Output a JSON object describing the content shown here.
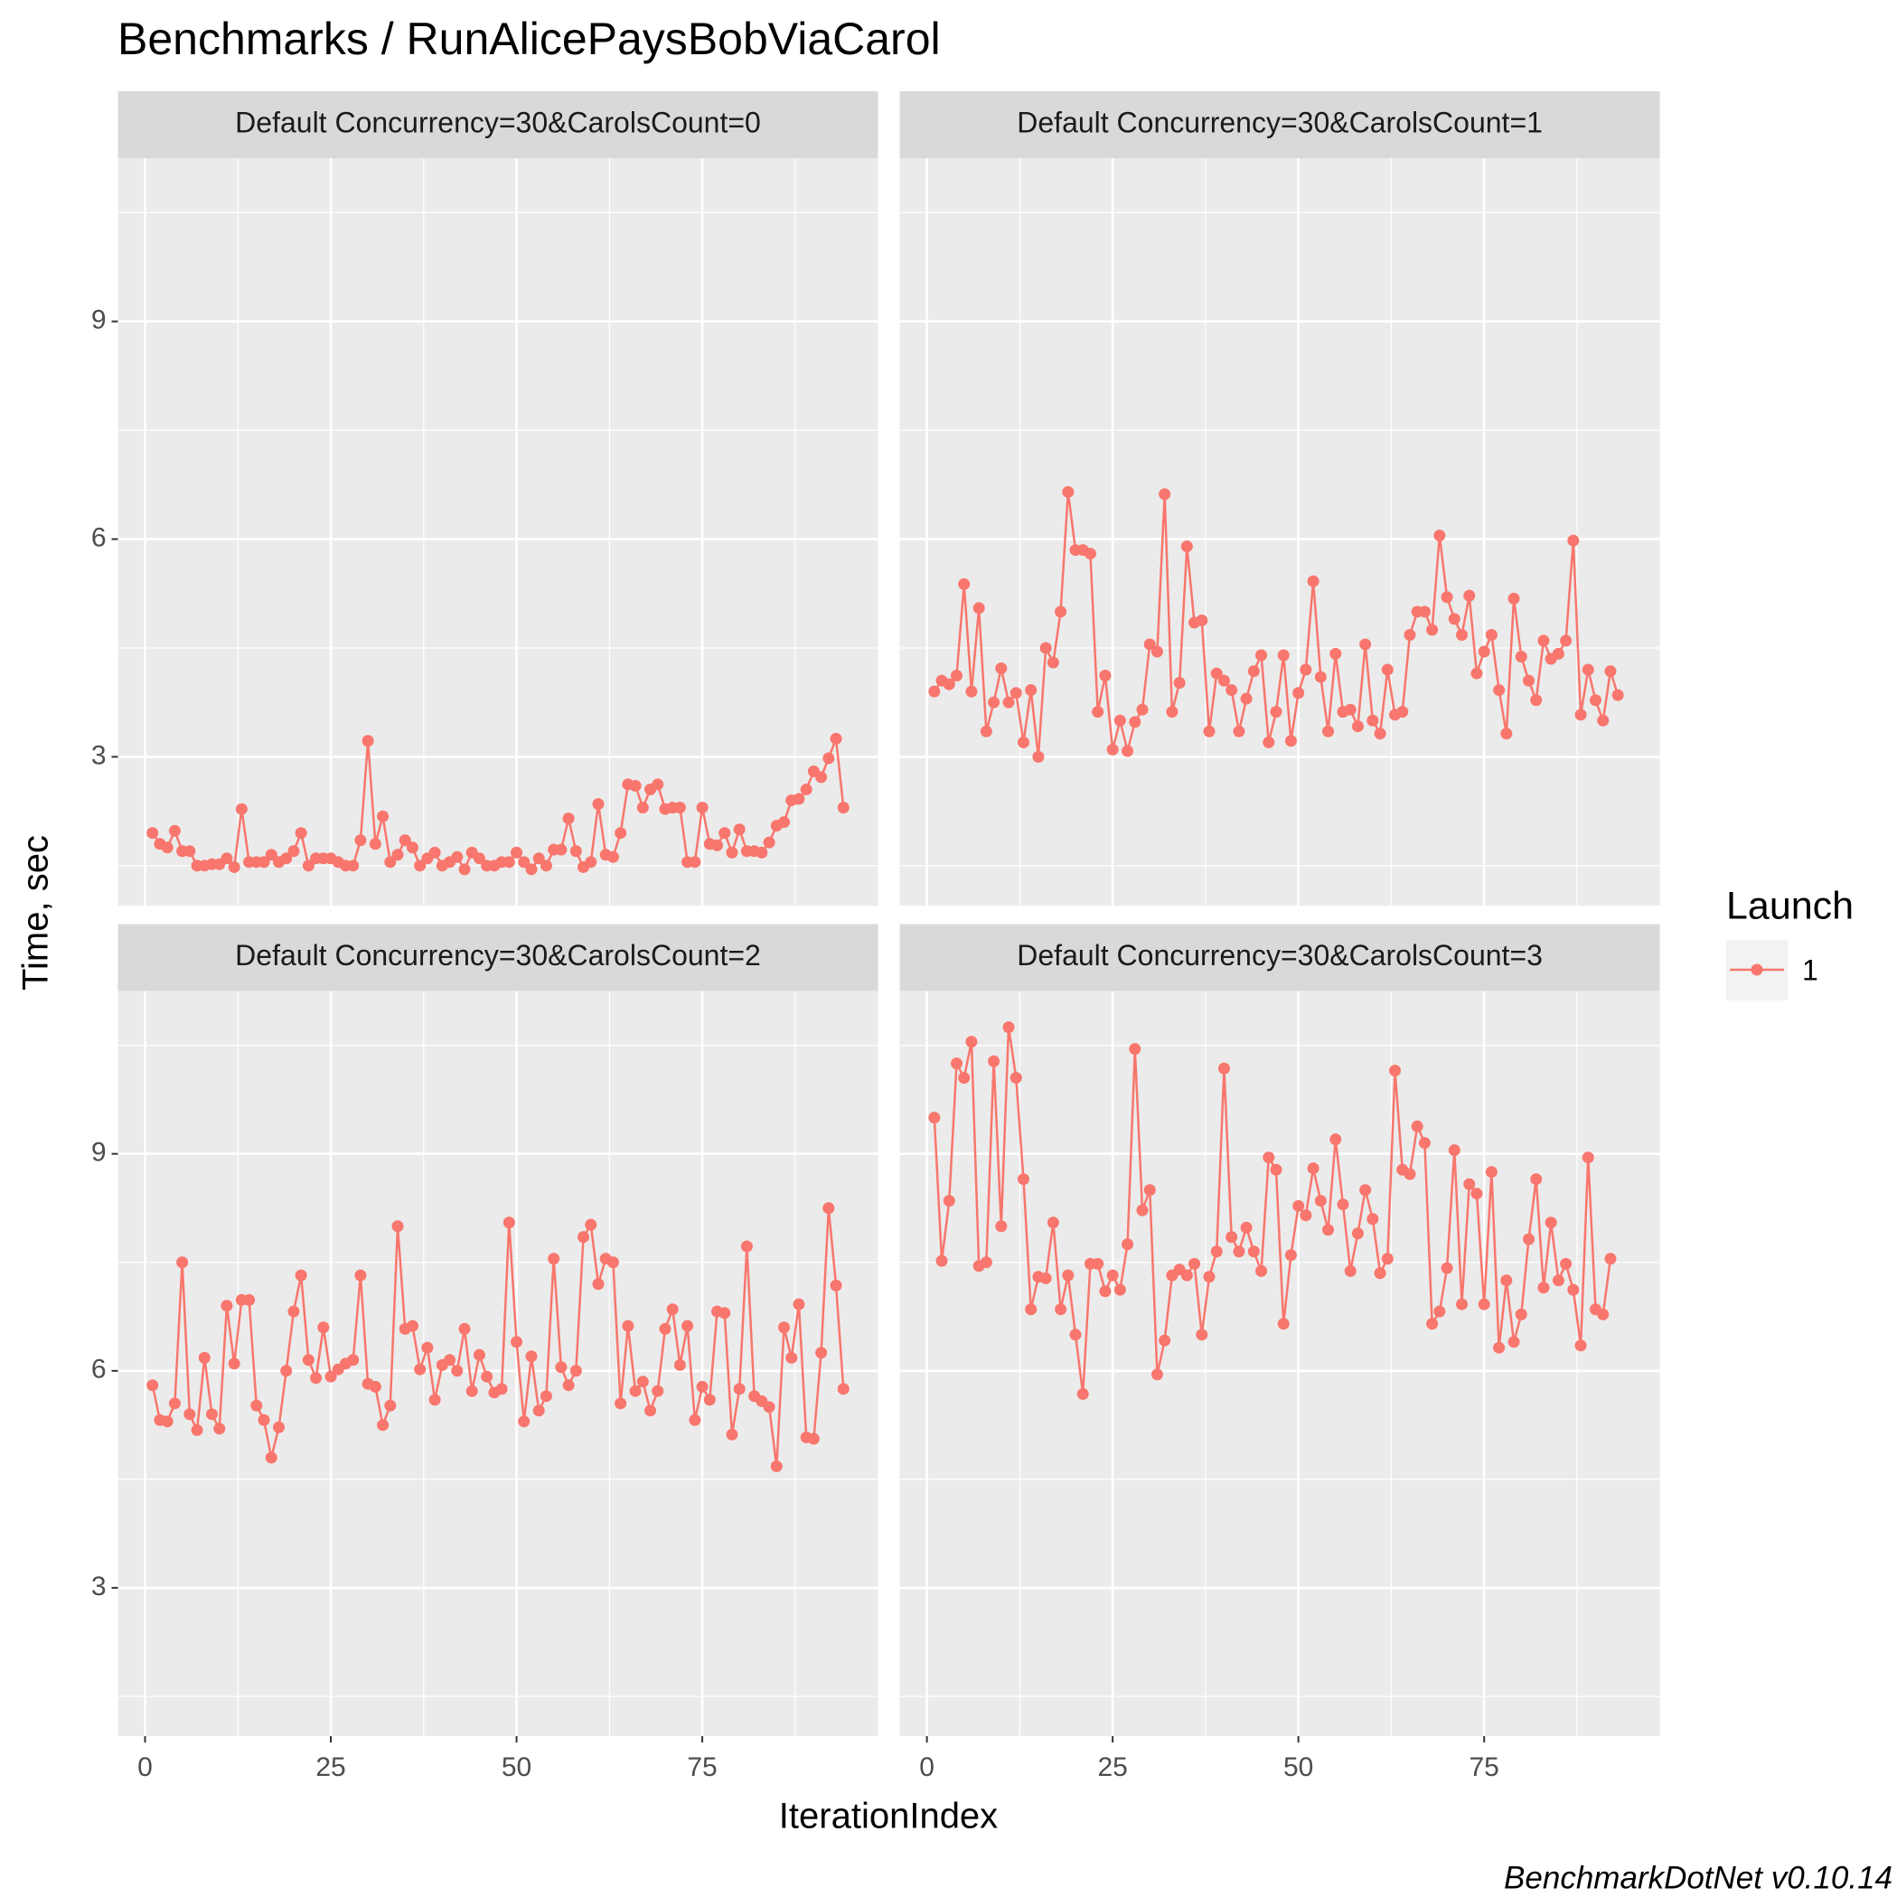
{
  "title": "Benchmarks / RunAlicePaysBobViaCarol",
  "x_label": "IterationIndex",
  "y_label": "Time, sec",
  "legend_title": "Launch",
  "caption": "BenchmarkDotNet v0.10.14",
  "chart_data": [
    {
      "type": "line",
      "title": "Default Concurrency=30&CarolsCount=0",
      "x": [
        1,
        2,
        3,
        4,
        5,
        6,
        7,
        8,
        9,
        10,
        11,
        12,
        13,
        14,
        15,
        16,
        17,
        18,
        19,
        20,
        21,
        22,
        23,
        24,
        25,
        26,
        27,
        28,
        29,
        30,
        31,
        32,
        33,
        34,
        35,
        36,
        37,
        38,
        39,
        40,
        41,
        42,
        43,
        44,
        45,
        46,
        47,
        48,
        49,
        50,
        51,
        52,
        53,
        54,
        55,
        56,
        57,
        58,
        59,
        60,
        61,
        62,
        63,
        64,
        65,
        66,
        67,
        68,
        69,
        70,
        71,
        72,
        73,
        74,
        75,
        76,
        77,
        78,
        79,
        80,
        81,
        82,
        83,
        84,
        85,
        86,
        87,
        88,
        89,
        90,
        91,
        92,
        93,
        94
      ],
      "series": [
        {
          "name": "1",
          "color": "#F8766D",
          "values": [
            1.95,
            1.8,
            1.75,
            1.98,
            1.7,
            1.7,
            1.5,
            1.5,
            1.52,
            1.52,
            1.6,
            1.48,
            2.28,
            1.55,
            1.55,
            1.55,
            1.65,
            1.55,
            1.6,
            1.7,
            1.95,
            1.5,
            1.6,
            1.6,
            1.6,
            1.55,
            1.5,
            1.5,
            1.85,
            3.22,
            1.8,
            2.18,
            1.55,
            1.65,
            1.85,
            1.75,
            1.5,
            1.6,
            1.68,
            1.5,
            1.55,
            1.62,
            1.45,
            1.68,
            1.6,
            1.5,
            1.5,
            1.55,
            1.55,
            1.68,
            1.55,
            1.45,
            1.6,
            1.5,
            1.72,
            1.72,
            2.15,
            1.7,
            1.48,
            1.55,
            2.35,
            1.65,
            1.62,
            1.95,
            2.62,
            2.6,
            2.3,
            2.55,
            2.62,
            2.28,
            2.3,
            2.3,
            1.55,
            1.55,
            2.3,
            1.8,
            1.78,
            1.95,
            1.68,
            2.0,
            1.7,
            1.7,
            1.68,
            1.82,
            2.05,
            2.1,
            2.4,
            2.42,
            2.55,
            2.8,
            2.72,
            2.98,
            3.25,
            2.3
          ]
        }
      ],
      "xlim": [
        -3.65,
        98.65
      ],
      "ylim": [
        0.95,
        11.25
      ],
      "xticks": [
        0,
        25,
        50,
        75
      ],
      "yticks": [
        3,
        6,
        9
      ],
      "xminor": [
        12.5,
        37.5,
        62.5,
        87.5
      ],
      "yminor": [
        1.5,
        4.5,
        7.5,
        10.5
      ],
      "grid": true
    },
    {
      "type": "line",
      "title": "Default Concurrency=30&CarolsCount=1",
      "x": [
        1,
        2,
        3,
        4,
        5,
        6,
        7,
        8,
        9,
        10,
        11,
        12,
        13,
        14,
        15,
        16,
        17,
        18,
        19,
        20,
        21,
        22,
        23,
        24,
        25,
        26,
        27,
        28,
        29,
        30,
        31,
        32,
        33,
        34,
        35,
        36,
        37,
        38,
        39,
        40,
        41,
        42,
        43,
        44,
        45,
        46,
        47,
        48,
        49,
        50,
        51,
        52,
        53,
        54,
        55,
        56,
        57,
        58,
        59,
        60,
        61,
        62,
        63,
        64,
        65,
        66,
        67,
        68,
        69,
        70,
        71,
        72,
        73,
        74,
        75,
        76,
        77,
        78,
        79,
        80,
        81,
        82,
        83,
        84,
        85,
        86,
        87,
        88,
        89,
        90,
        91,
        92,
        93
      ],
      "series": [
        {
          "name": "1",
          "color": "#F8766D",
          "values": [
            3.9,
            4.05,
            4.0,
            4.12,
            5.38,
            3.9,
            5.05,
            3.35,
            3.75,
            4.22,
            3.75,
            3.88,
            3.2,
            3.92,
            3.0,
            4.5,
            4.3,
            5.0,
            6.65,
            5.85,
            5.85,
            5.8,
            3.62,
            4.12,
            3.1,
            3.5,
            3.08,
            3.48,
            3.65,
            4.55,
            4.45,
            6.62,
            3.62,
            4.02,
            5.9,
            4.85,
            4.88,
            3.35,
            4.15,
            4.05,
            3.92,
            3.35,
            3.8,
            4.18,
            4.4,
            3.2,
            3.62,
            4.4,
            3.22,
            3.88,
            4.2,
            5.42,
            4.1,
            3.35,
            4.42,
            3.62,
            3.65,
            3.42,
            4.55,
            3.5,
            3.32,
            4.2,
            3.58,
            3.62,
            4.68,
            5.0,
            5.0,
            4.75,
            6.05,
            5.2,
            4.9,
            4.68,
            5.22,
            4.15,
            4.45,
            4.68,
            3.92,
            3.32,
            5.18,
            4.38,
            4.05,
            3.78,
            4.6,
            4.35,
            4.42,
            4.6,
            5.98,
            3.58,
            4.2,
            3.78,
            3.5,
            4.18,
            3.85
          ]
        }
      ],
      "xlim": [
        -3.65,
        98.65
      ],
      "ylim": [
        0.95,
        11.25
      ],
      "xticks": [
        0,
        25,
        50,
        75
      ],
      "yticks": [
        3,
        6,
        9
      ],
      "xminor": [
        12.5,
        37.5,
        62.5,
        87.5
      ],
      "yminor": [
        1.5,
        4.5,
        7.5,
        10.5
      ],
      "grid": true
    },
    {
      "type": "line",
      "title": "Default Concurrency=30&CarolsCount=2",
      "x": [
        1,
        2,
        3,
        4,
        5,
        6,
        7,
        8,
        9,
        10,
        11,
        12,
        13,
        14,
        15,
        16,
        17,
        18,
        19,
        20,
        21,
        22,
        23,
        24,
        25,
        26,
        27,
        28,
        29,
        30,
        31,
        32,
        33,
        34,
        35,
        36,
        37,
        38,
        39,
        40,
        41,
        42,
        43,
        44,
        45,
        46,
        47,
        48,
        49,
        50,
        51,
        52,
        53,
        54,
        55,
        56,
        57,
        58,
        59,
        60,
        61,
        62,
        63,
        64,
        65,
        66,
        67,
        68,
        69,
        70,
        71,
        72,
        73,
        74,
        75,
        76,
        77,
        78,
        79,
        80,
        81,
        82,
        83,
        84,
        85,
        86,
        87,
        88,
        89,
        90,
        91,
        92,
        93,
        94
      ],
      "series": [
        {
          "name": "1",
          "color": "#F8766D",
          "values": [
            5.8,
            5.32,
            5.3,
            5.55,
            7.5,
            5.4,
            5.18,
            6.18,
            5.4,
            5.2,
            6.9,
            6.1,
            6.98,
            6.98,
            5.52,
            5.32,
            4.8,
            5.22,
            6.0,
            6.82,
            7.32,
            6.15,
            5.9,
            6.6,
            5.92,
            6.02,
            6.1,
            6.15,
            7.32,
            5.82,
            5.78,
            5.25,
            5.52,
            8.0,
            6.58,
            6.62,
            6.02,
            6.32,
            5.6,
            6.08,
            6.15,
            6.0,
            6.58,
            5.72,
            6.22,
            5.92,
            5.7,
            5.75,
            8.05,
            6.4,
            5.3,
            6.2,
            5.45,
            5.65,
            7.55,
            6.05,
            5.8,
            6.0,
            7.85,
            8.02,
            7.2,
            7.55,
            7.5,
            5.55,
            6.62,
            5.72,
            5.85,
            5.45,
            5.72,
            6.58,
            6.85,
            6.08,
            6.62,
            5.32,
            5.78,
            5.6,
            6.82,
            6.8,
            5.12,
            5.75,
            7.72,
            5.65,
            5.58,
            5.5,
            4.68,
            6.6,
            6.18,
            6.92,
            5.08,
            5.06,
            6.25,
            8.25,
            7.18,
            5.75
          ]
        }
      ],
      "xlim": [
        -3.65,
        98.65
      ],
      "ylim": [
        0.95,
        11.25
      ],
      "xticks": [
        0,
        25,
        50,
        75
      ],
      "yticks": [
        3,
        6,
        9
      ],
      "xminor": [
        12.5,
        37.5,
        62.5,
        87.5
      ],
      "yminor": [
        1.5,
        4.5,
        7.5,
        10.5
      ],
      "grid": true
    },
    {
      "type": "line",
      "title": "Default Concurrency=30&CarolsCount=3",
      "x": [
        1,
        2,
        3,
        4,
        5,
        6,
        7,
        8,
        9,
        10,
        11,
        12,
        13,
        14,
        15,
        16,
        17,
        18,
        19,
        20,
        21,
        22,
        23,
        24,
        25,
        26,
        27,
        28,
        29,
        30,
        31,
        32,
        33,
        34,
        35,
        36,
        37,
        38,
        39,
        40,
        41,
        42,
        43,
        44,
        45,
        46,
        47,
        48,
        49,
        50,
        51,
        52,
        53,
        54,
        55,
        56,
        57,
        58,
        59,
        60,
        61,
        62,
        63,
        64,
        65,
        66,
        67,
        68,
        69,
        70,
        71,
        72,
        73,
        74,
        75,
        76,
        77,
        78,
        79,
        80,
        81,
        82,
        83,
        84,
        85,
        86,
        87,
        88,
        89,
        90,
        91,
        92
      ],
      "series": [
        {
          "name": "1",
          "color": "#F8766D",
          "values": [
            9.5,
            7.52,
            8.35,
            10.25,
            10.05,
            10.55,
            7.45,
            7.5,
            10.28,
            8.0,
            10.75,
            10.05,
            8.65,
            6.85,
            7.3,
            7.28,
            8.05,
            6.85,
            7.32,
            6.5,
            5.68,
            7.48,
            7.48,
            7.1,
            7.32,
            7.12,
            7.75,
            10.45,
            8.22,
            8.5,
            5.95,
            6.42,
            7.32,
            7.4,
            7.32,
            7.48,
            6.5,
            7.3,
            7.65,
            10.18,
            7.85,
            7.65,
            7.98,
            7.65,
            7.38,
            8.95,
            8.78,
            6.65,
            7.6,
            8.28,
            8.15,
            8.8,
            8.35,
            7.95,
            9.2,
            8.3,
            7.38,
            7.9,
            8.5,
            8.1,
            7.35,
            7.55,
            10.15,
            8.78,
            8.72,
            9.38,
            9.15,
            6.65,
            6.82,
            7.42,
            9.05,
            6.92,
            8.58,
            8.45,
            6.92,
            8.75,
            6.32,
            7.25,
            6.4,
            6.78,
            7.82,
            8.65,
            7.15,
            8.05,
            7.25,
            7.48,
            7.12,
            6.35,
            8.95,
            6.85,
            6.78,
            7.55
          ]
        }
      ],
      "xlim": [
        -3.65,
        98.65
      ],
      "ylim": [
        0.95,
        11.25
      ],
      "xticks": [
        0,
        25,
        50,
        75
      ],
      "yticks": [
        3,
        6,
        9
      ],
      "xminor": [
        12.5,
        37.5,
        62.5,
        87.5
      ],
      "yminor": [
        1.5,
        4.5,
        7.5,
        10.5
      ],
      "grid": true
    }
  ]
}
